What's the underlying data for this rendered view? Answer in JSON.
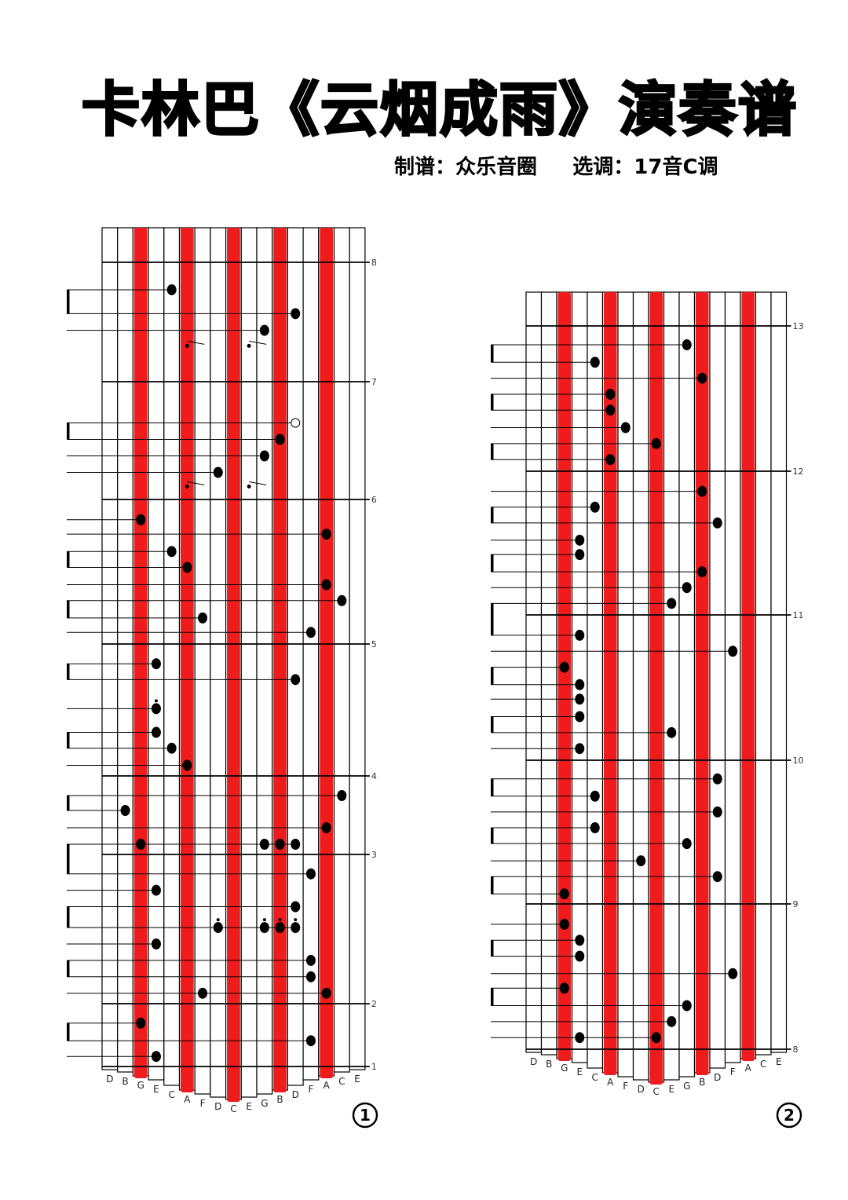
{
  "header": {
    "title": "卡林巴《云烟成雨》演奏谱",
    "credit": "制谱：众乐音圈     选调：17音C调"
  },
  "keys": [
    "D",
    "B",
    "G",
    "E",
    "C",
    "A",
    "F",
    "D",
    "C",
    "E",
    "G",
    "B",
    "D",
    "F",
    "A",
    "C",
    "E"
  ],
  "highlighted_keys": [
    2,
    5,
    8,
    11,
    14
  ],
  "colors": {
    "highlight": "#ee1c1c",
    "line": "#000000"
  },
  "sheets": [
    {
      "page_label": "①",
      "measures": [
        "1",
        "2",
        "3",
        "4",
        "5",
        "6",
        "7",
        "8"
      ],
      "notes": [
        {
          "k": 4,
          "t": 7.77
        },
        {
          "k": 12,
          "t": 7.57
        },
        {
          "k": 10,
          "t": 7.43
        },
        {
          "k": 5,
          "t": 7.3,
          "grace": true
        },
        {
          "k": 9,
          "t": 7.3,
          "grace": true
        },
        {
          "k": 12,
          "t": 6.65,
          "open": true
        },
        {
          "k": 11,
          "t": 6.51
        },
        {
          "k": 10,
          "t": 6.37
        },
        {
          "k": 7,
          "t": 6.23
        },
        {
          "k": 5,
          "t": 6.11,
          "grace": true
        },
        {
          "k": 9,
          "t": 6.11,
          "grace": true
        },
        {
          "k": 2,
          "t": 5.86
        },
        {
          "k": 14,
          "t": 5.76
        },
        {
          "k": 4,
          "t": 5.64
        },
        {
          "k": 5,
          "t": 5.53
        },
        {
          "k": 14,
          "t": 5.41
        },
        {
          "k": 15,
          "t": 5.3
        },
        {
          "k": 6,
          "t": 5.18
        },
        {
          "k": 13,
          "t": 5.08
        },
        {
          "k": 3,
          "t": 4.85
        },
        {
          "k": 12,
          "t": 4.73
        },
        {
          "k": 3,
          "t": 4.51,
          "dot": true
        },
        {
          "k": 3,
          "t": 4.33
        },
        {
          "k": 4,
          "t": 4.21
        },
        {
          "k": 5,
          "t": 4.08
        },
        {
          "k": 15,
          "t": 3.75
        },
        {
          "k": 1,
          "t": 3.56
        },
        {
          "k": 14,
          "t": 3.34
        },
        {
          "k": 2,
          "t": 3.13
        },
        {
          "k": 10,
          "t": 3.13
        },
        {
          "k": 11,
          "t": 3.13
        },
        {
          "k": 12,
          "t": 3.13
        },
        {
          "k": 13,
          "t": 2.87
        },
        {
          "k": 3,
          "t": 2.76
        },
        {
          "k": 12,
          "t": 2.65
        },
        {
          "k": 7,
          "t": 2.51,
          "dot": true
        },
        {
          "k": 10,
          "t": 2.51,
          "dot": true
        },
        {
          "k": 11,
          "t": 2.51,
          "dot": true
        },
        {
          "k": 12,
          "t": 2.51,
          "dot": true
        },
        {
          "k": 3,
          "t": 2.4
        },
        {
          "k": 13,
          "t": 2.29
        },
        {
          "k": 13,
          "t": 2.18
        },
        {
          "k": 6,
          "t": 2.07
        },
        {
          "k": 14,
          "t": 2.07
        },
        {
          "k": 2,
          "t": 1.69
        },
        {
          "k": 13,
          "t": 1.41
        },
        {
          "k": 3,
          "t": 1.16
        }
      ]
    },
    {
      "page_label": "②",
      "measures": [
        "8",
        "9",
        "10",
        "11",
        "12",
        "13"
      ],
      "notes": [
        {
          "k": 10,
          "t": 12.87
        },
        {
          "k": 4,
          "t": 12.75
        },
        {
          "k": 11,
          "t": 12.64
        },
        {
          "k": 5,
          "t": 12.53
        },
        {
          "k": 5,
          "t": 12.42
        },
        {
          "k": 6,
          "t": 12.3
        },
        {
          "k": 8,
          "t": 12.19
        },
        {
          "k": 5,
          "t": 12.08
        },
        {
          "k": 11,
          "t": 11.86
        },
        {
          "k": 4,
          "t": 11.75
        },
        {
          "k": 12,
          "t": 11.64
        },
        {
          "k": 3,
          "t": 11.52
        },
        {
          "k": 3,
          "t": 11.42
        },
        {
          "k": 11,
          "t": 11.3
        },
        {
          "k": 10,
          "t": 11.19
        },
        {
          "k": 9,
          "t": 11.08
        },
        {
          "k": 3,
          "t": 10.86
        },
        {
          "k": 13,
          "t": 10.75
        },
        {
          "k": 2,
          "t": 10.64
        },
        {
          "k": 3,
          "t": 10.52
        },
        {
          "k": 3,
          "t": 10.42
        },
        {
          "k": 3,
          "t": 10.3
        },
        {
          "k": 9,
          "t": 10.19
        },
        {
          "k": 3,
          "t": 10.08
        },
        {
          "k": 12,
          "t": 9.87
        },
        {
          "k": 4,
          "t": 9.75
        },
        {
          "k": 12,
          "t": 9.64
        },
        {
          "k": 4,
          "t": 9.53
        },
        {
          "k": 10,
          "t": 9.42
        },
        {
          "k": 7,
          "t": 9.3
        },
        {
          "k": 12,
          "t": 9.19
        },
        {
          "k": 2,
          "t": 9.07
        },
        {
          "k": 2,
          "t": 8.86
        },
        {
          "k": 3,
          "t": 8.75
        },
        {
          "k": 3,
          "t": 8.64
        },
        {
          "k": 13,
          "t": 8.52
        },
        {
          "k": 2,
          "t": 8.42
        },
        {
          "k": 10,
          "t": 8.3
        },
        {
          "k": 9,
          "t": 8.19
        },
        {
          "k": 3,
          "t": 8.08
        },
        {
          "k": 8,
          "t": 8.08
        }
      ]
    }
  ]
}
